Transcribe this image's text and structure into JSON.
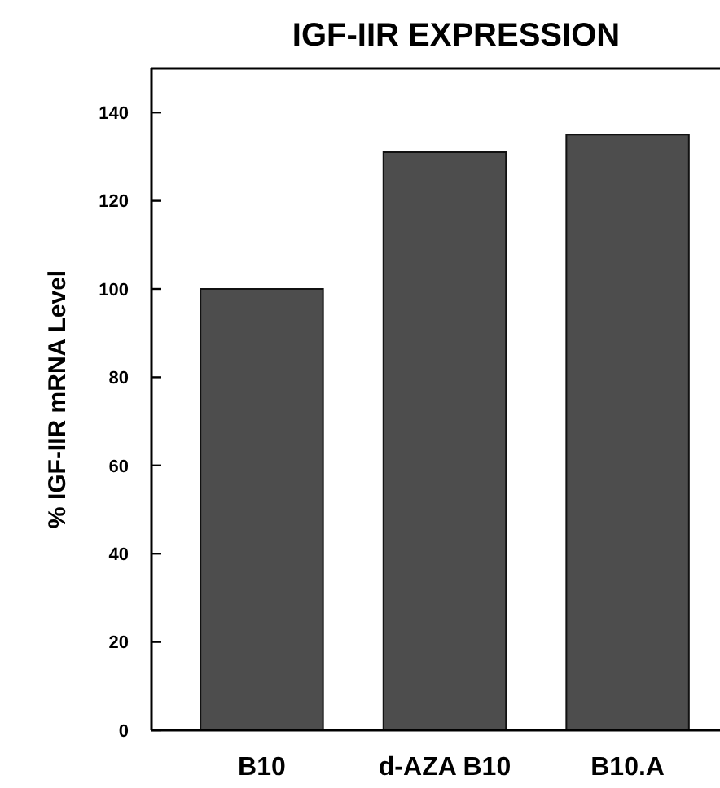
{
  "chart_data": {
    "type": "bar",
    "title": "IGF-IIR EXPRESSION",
    "ylabel": "% IGF-IIR mRNA Level",
    "categories": [
      "B10",
      "d-AZA B10",
      "B10.A"
    ],
    "values": [
      100,
      131,
      135
    ],
    "color": "#4d4d4d",
    "ylim": [
      0,
      150
    ],
    "yticks": [
      0,
      20,
      40,
      60,
      80,
      100,
      120,
      140
    ],
    "grid": false
  }
}
